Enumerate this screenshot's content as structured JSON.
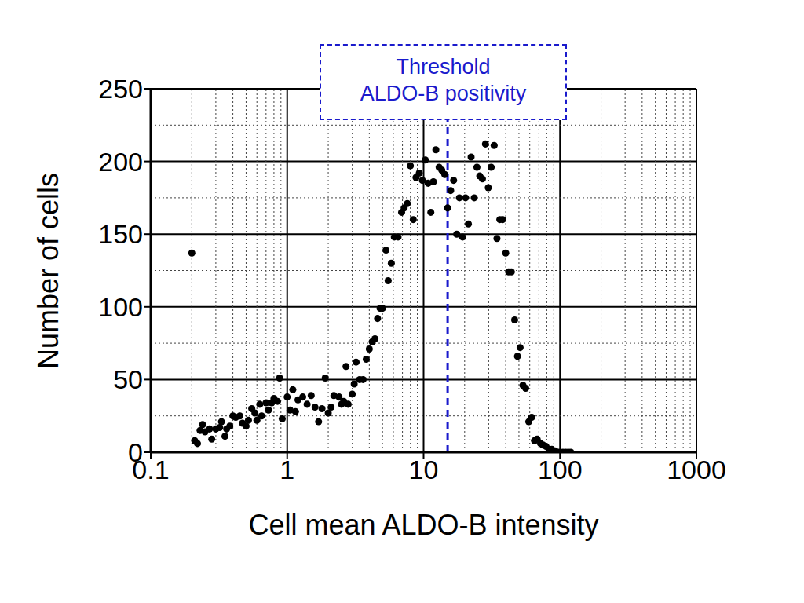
{
  "chart_data": {
    "type": "scatter",
    "xlabel": "Cell mean ALDO-B intensity",
    "ylabel": "Number of cells",
    "color": "#000000",
    "marker": "circle",
    "log": "x",
    "grid": true,
    "xlim": [
      0.1,
      1000
    ],
    "xticks": [
      0.1,
      1,
      10,
      100,
      1000
    ],
    "ylim": [
      0,
      250
    ],
    "yticks": [
      0,
      50,
      100,
      150,
      200,
      250
    ],
    "annotations": [
      {
        "x": 15,
        "lines": [
          "Threshold",
          "ALDO-B positivity"
        ],
        "color": "#1a1acc",
        "line_style": "dashed"
      }
    ],
    "x": [
      0.2,
      0.21,
      0.22,
      0.23,
      0.24,
      0.25,
      0.27,
      0.28,
      0.3,
      0.32,
      0.33,
      0.35,
      0.36,
      0.38,
      0.4,
      0.42,
      0.45,
      0.47,
      0.5,
      0.52,
      0.55,
      0.58,
      0.6,
      0.63,
      0.65,
      0.7,
      0.73,
      0.77,
      0.8,
      0.85,
      0.88,
      0.92,
      1.0,
      1.05,
      1.1,
      1.15,
      1.2,
      1.3,
      1.4,
      1.5,
      1.6,
      1.7,
      1.8,
      1.9,
      2.0,
      2.1,
      2.2,
      2.4,
      2.5,
      2.6,
      2.7,
      2.8,
      3.0,
      3.1,
      3.2,
      3.4,
      3.6,
      3.8,
      4.0,
      4.2,
      4.4,
      4.6,
      4.8,
      5.0,
      5.3,
      5.5,
      5.8,
      6.1,
      6.5,
      6.9,
      7.2,
      7.6,
      8.0,
      8.4,
      8.8,
      9.3,
      9.8,
      10.3,
      10.8,
      11.3,
      11.8,
      12.3,
      13,
      13.6,
      14.3,
      15,
      15.8,
      16.6,
      17.5,
      18.3,
      19.3,
      20.3,
      21.3,
      22.3,
      23.5,
      24.6,
      25.8,
      27,
      28.4,
      29.8,
      31.3,
      32.9,
      34.5,
      36.2,
      38,
      40,
      42,
      44,
      46.5,
      48.8,
      51,
      53.5,
      56,
      59,
      62,
      65,
      68,
      72,
      75,
      79,
      83,
      87,
      92,
      96,
      100,
      105,
      110,
      115,
      120
    ],
    "values": [
      137,
      8,
      6,
      15,
      19,
      14,
      16,
      9,
      16,
      17,
      21,
      11,
      16,
      18,
      25,
      24,
      25,
      20,
      18,
      22,
      30,
      27,
      22,
      33,
      25,
      34,
      29,
      34,
      37,
      35,
      51,
      23,
      38,
      29,
      43,
      28,
      36,
      38,
      33,
      39,
      31,
      21,
      30,
      51,
      27,
      31,
      39,
      38,
      33,
      35,
      59,
      33,
      40,
      47,
      62,
      50,
      50,
      64,
      71,
      76,
      78,
      92,
      99,
      99,
      139,
      118,
      130,
      148,
      148,
      165,
      168,
      171,
      197,
      160,
      189,
      192,
      187,
      201,
      185,
      165,
      186,
      208,
      196,
      194,
      191,
      168,
      180,
      187,
      150,
      175,
      148,
      175,
      157,
      203,
      175,
      196,
      190,
      188,
      212,
      182,
      196,
      211,
      147,
      160,
      160,
      137,
      124,
      124,
      91,
      66,
      72,
      46,
      44,
      21,
      24,
      8,
      9,
      6,
      5,
      4,
      2,
      2,
      1,
      0,
      0,
      0,
      0,
      0,
      0
    ]
  }
}
